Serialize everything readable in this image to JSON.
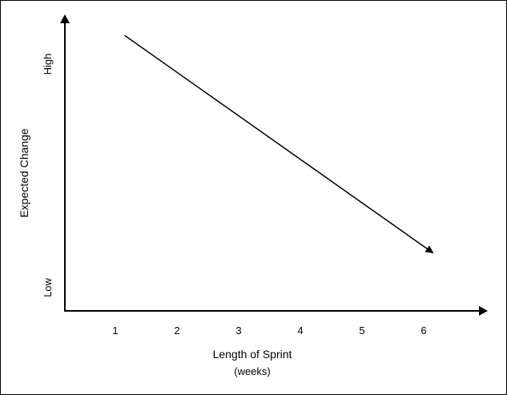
{
  "chart_data": {
    "type": "line",
    "title": "",
    "xlabel": "Length of Sprint",
    "xlabel_sub": "(weeks)",
    "ylabel": "Expected Change",
    "x_ticks": [
      "1",
      "2",
      "3",
      "4",
      "5",
      "6"
    ],
    "y_ticks": {
      "low": "Low",
      "high": "High"
    },
    "xlim": [
      0,
      7
    ],
    "ylim": [
      0,
      1
    ],
    "series": [
      {
        "x": [
          1.15,
          6.15
        ],
        "y": [
          0.95,
          0.2
        ],
        "arrow_end": true
      }
    ],
    "grid": false,
    "legend": "none",
    "colors": {
      "line": "#000000",
      "axis": "#000000",
      "background": "#ffffff"
    }
  }
}
